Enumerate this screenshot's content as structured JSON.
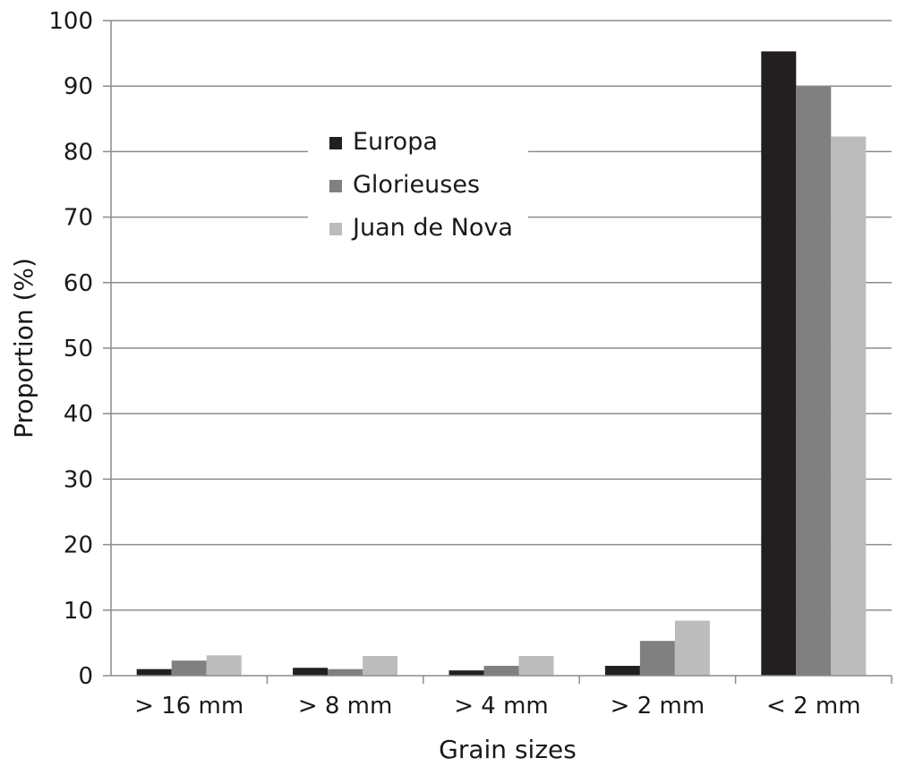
{
  "chart_data": {
    "type": "bar",
    "xlabel": "Grain sizes",
    "ylabel": "Proportion (%)",
    "ylim": [
      0,
      100
    ],
    "yticks": [
      0,
      10,
      20,
      30,
      40,
      50,
      60,
      70,
      80,
      90,
      100
    ],
    "grid": true,
    "legend_position": "top-left",
    "categories": [
      "> 16 mm",
      "> 8 mm",
      "> 4 mm",
      "> 2 mm",
      "< 2 mm"
    ],
    "series": [
      {
        "name": "Europa",
        "color": "#231f20",
        "values": [
          1.0,
          1.2,
          0.8,
          1.5,
          95.3
        ]
      },
      {
        "name": "Glorieuses",
        "color": "#808080",
        "values": [
          2.3,
          1.0,
          1.5,
          5.3,
          89.9
        ]
      },
      {
        "name": "Juan de Nova",
        "color": "#bcbcbc",
        "values": [
          3.1,
          3.0,
          3.0,
          8.4,
          82.3
        ]
      }
    ]
  }
}
